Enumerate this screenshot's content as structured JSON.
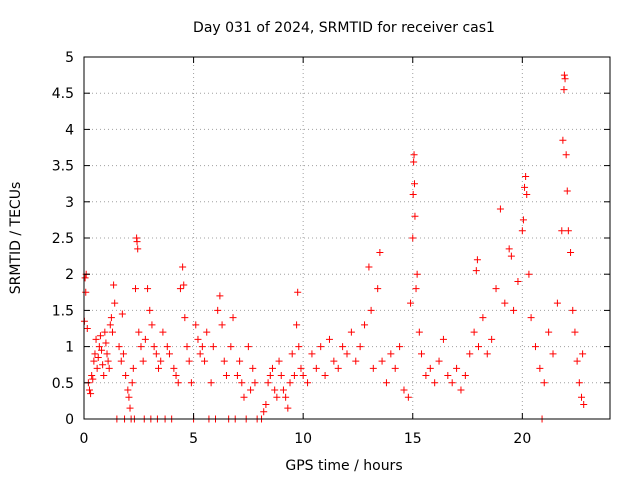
{
  "chart_data": {
    "type": "scatter",
    "title": "Day 031 of 2024, SRMTID for receiver cas1",
    "xlabel": "GPS time / hours",
    "ylabel": "SRMTID / TECUs",
    "xlim": [
      0,
      24
    ],
    "ylim": [
      0,
      5
    ],
    "xticks": [
      0,
      5,
      10,
      15,
      20
    ],
    "xtick_labels": [
      "0",
      "5",
      "10",
      "15",
      "20"
    ],
    "yticks": [
      0,
      0.5,
      1,
      1.5,
      2,
      2.5,
      3,
      3.5,
      4,
      4.5,
      5
    ],
    "ytick_labels": [
      "0",
      "0.5",
      "1",
      "1.5",
      "2",
      "2.5",
      "3",
      "3.5",
      "4",
      "4.5",
      "5"
    ],
    "grid": true,
    "marker": "+",
    "color": "#ff0000",
    "series": [
      {
        "name": "SRMTID",
        "points": [
          [
            0.02,
            1.35
          ],
          [
            0.05,
            1.95
          ],
          [
            0.08,
            1.75
          ],
          [
            0.1,
            2.0
          ],
          [
            0.15,
            1.25
          ],
          [
            0.2,
            0.5
          ],
          [
            0.25,
            0.4
          ],
          [
            0.3,
            0.35
          ],
          [
            0.35,
            0.6
          ],
          [
            0.4,
            0.55
          ],
          [
            0.45,
            0.8
          ],
          [
            0.5,
            0.9
          ],
          [
            0.55,
            1.1
          ],
          [
            0.6,
            0.7
          ],
          [
            0.65,
            0.85
          ],
          [
            0.7,
            1.0
          ],
          [
            0.75,
            1.15
          ],
          [
            0.8,
            0.95
          ],
          [
            0.85,
            0.75
          ],
          [
            0.9,
            0.6
          ],
          [
            0.95,
            1.2
          ],
          [
            1.0,
            1.05
          ],
          [
            1.05,
            0.9
          ],
          [
            1.1,
            0.8
          ],
          [
            1.15,
            0.7
          ],
          [
            1.2,
            1.3
          ],
          [
            1.25,
            1.4
          ],
          [
            1.3,
            1.2
          ],
          [
            1.35,
            1.85
          ],
          [
            1.4,
            1.6
          ],
          [
            1.5,
            0.0
          ],
          [
            1.6,
            1.0
          ],
          [
            1.7,
            0.8
          ],
          [
            1.75,
            1.45
          ],
          [
            1.8,
            0.9
          ],
          [
            1.85,
            0.0
          ],
          [
            1.9,
            0.6
          ],
          [
            2.0,
            0.4
          ],
          [
            2.05,
            0.3
          ],
          [
            2.1,
            0.15
          ],
          [
            2.15,
            0.0
          ],
          [
            2.2,
            0.5
          ],
          [
            2.25,
            0.7
          ],
          [
            2.3,
            0.0
          ],
          [
            2.35,
            1.8
          ],
          [
            2.4,
            2.5
          ],
          [
            2.42,
            2.45
          ],
          [
            2.45,
            2.35
          ],
          [
            2.5,
            1.2
          ],
          [
            2.6,
            1.0
          ],
          [
            2.7,
            0.8
          ],
          [
            2.75,
            0.0
          ],
          [
            2.8,
            1.1
          ],
          [
            2.9,
            1.8
          ],
          [
            3.0,
            1.5
          ],
          [
            3.05,
            0.0
          ],
          [
            3.1,
            1.3
          ],
          [
            3.2,
            1.0
          ],
          [
            3.3,
            0.9
          ],
          [
            3.35,
            0.0
          ],
          [
            3.4,
            0.7
          ],
          [
            3.5,
            0.8
          ],
          [
            3.6,
            1.2
          ],
          [
            3.7,
            0.0
          ],
          [
            3.8,
            1.0
          ],
          [
            3.9,
            0.9
          ],
          [
            4.0,
            0.0
          ],
          [
            4.1,
            0.7
          ],
          [
            4.2,
            0.6
          ],
          [
            4.3,
            0.5
          ],
          [
            4.4,
            1.8
          ],
          [
            4.5,
            2.1
          ],
          [
            4.55,
            1.85
          ],
          [
            4.6,
            1.4
          ],
          [
            4.7,
            1.0
          ],
          [
            4.8,
            0.8
          ],
          [
            4.9,
            0.5
          ],
          [
            5.0,
            0.0
          ],
          [
            5.1,
            1.3
          ],
          [
            5.2,
            1.1
          ],
          [
            5.3,
            0.9
          ],
          [
            5.4,
            1.0
          ],
          [
            5.5,
            0.8
          ],
          [
            5.6,
            1.2
          ],
          [
            5.7,
            0.0
          ],
          [
            5.8,
            0.5
          ],
          [
            5.9,
            1.0
          ],
          [
            6.0,
            0.0
          ],
          [
            6.1,
            1.5
          ],
          [
            6.2,
            1.7
          ],
          [
            6.3,
            1.3
          ],
          [
            6.4,
            0.8
          ],
          [
            6.5,
            0.6
          ],
          [
            6.6,
            0.0
          ],
          [
            6.7,
            1.0
          ],
          [
            6.8,
            1.4
          ],
          [
            6.9,
            0.0
          ],
          [
            7.0,
            0.6
          ],
          [
            7.1,
            0.8
          ],
          [
            7.2,
            0.5
          ],
          [
            7.3,
            0.3
          ],
          [
            7.4,
            0.0
          ],
          [
            7.5,
            1.0
          ],
          [
            7.6,
            0.4
          ],
          [
            7.7,
            0.7
          ],
          [
            7.8,
            0.5
          ],
          [
            7.9,
            0.0
          ],
          [
            8.1,
            0.0
          ],
          [
            8.2,
            0.1
          ],
          [
            8.3,
            0.2
          ],
          [
            8.4,
            0.5
          ],
          [
            8.5,
            0.6
          ],
          [
            8.6,
            0.7
          ],
          [
            8.7,
            0.4
          ],
          [
            8.8,
            0.3
          ],
          [
            8.9,
            0.8
          ],
          [
            9.0,
            0.6
          ],
          [
            9.1,
            0.4
          ],
          [
            9.2,
            0.3
          ],
          [
            9.3,
            0.15
          ],
          [
            9.4,
            0.5
          ],
          [
            9.5,
            0.9
          ],
          [
            9.6,
            0.6
          ],
          [
            9.7,
            1.3
          ],
          [
            9.75,
            1.75
          ],
          [
            9.8,
            1.0
          ],
          [
            9.9,
            0.7
          ],
          [
            10.0,
            0.6
          ],
          [
            10.2,
            0.5
          ],
          [
            10.4,
            0.9
          ],
          [
            10.6,
            0.7
          ],
          [
            10.8,
            1.0
          ],
          [
            11.0,
            0.6
          ],
          [
            11.2,
            1.1
          ],
          [
            11.4,
            0.8
          ],
          [
            11.6,
            0.7
          ],
          [
            11.8,
            1.0
          ],
          [
            12.0,
            0.9
          ],
          [
            12.2,
            1.2
          ],
          [
            12.4,
            0.8
          ],
          [
            12.6,
            1.0
          ],
          [
            12.8,
            1.3
          ],
          [
            13.0,
            2.1
          ],
          [
            13.1,
            1.5
          ],
          [
            13.2,
            0.7
          ],
          [
            13.4,
            1.8
          ],
          [
            13.5,
            2.3
          ],
          [
            13.6,
            0.8
          ],
          [
            13.8,
            0.5
          ],
          [
            14.0,
            0.9
          ],
          [
            14.2,
            0.7
          ],
          [
            14.4,
            1.0
          ],
          [
            14.6,
            0.4
          ],
          [
            14.8,
            0.3
          ],
          [
            14.9,
            1.6
          ],
          [
            15.0,
            2.5
          ],
          [
            15.02,
            3.1
          ],
          [
            15.04,
            3.55
          ],
          [
            15.06,
            3.65
          ],
          [
            15.08,
            3.25
          ],
          [
            15.1,
            2.8
          ],
          [
            15.15,
            1.8
          ],
          [
            15.2,
            2.0
          ],
          [
            15.3,
            1.2
          ],
          [
            15.4,
            0.9
          ],
          [
            15.6,
            0.6
          ],
          [
            15.8,
            0.7
          ],
          [
            16.0,
            0.5
          ],
          [
            16.2,
            0.8
          ],
          [
            16.4,
            1.1
          ],
          [
            16.6,
            0.6
          ],
          [
            16.8,
            0.5
          ],
          [
            17.0,
            0.7
          ],
          [
            17.2,
            0.4
          ],
          [
            17.4,
            0.6
          ],
          [
            17.6,
            0.9
          ],
          [
            17.8,
            1.2
          ],
          [
            17.9,
            2.05
          ],
          [
            17.95,
            2.2
          ],
          [
            18.0,
            1.0
          ],
          [
            18.2,
            1.4
          ],
          [
            18.4,
            0.9
          ],
          [
            18.6,
            1.1
          ],
          [
            18.8,
            1.8
          ],
          [
            19.0,
            2.9
          ],
          [
            19.2,
            1.6
          ],
          [
            19.4,
            2.35
          ],
          [
            19.5,
            2.25
          ],
          [
            19.6,
            1.5
          ],
          [
            19.8,
            1.9
          ],
          [
            20.0,
            2.6
          ],
          [
            20.05,
            2.75
          ],
          [
            20.1,
            3.2
          ],
          [
            20.15,
            3.35
          ],
          [
            20.2,
            3.1
          ],
          [
            20.3,
            2.0
          ],
          [
            20.4,
            1.4
          ],
          [
            20.6,
            1.0
          ],
          [
            20.8,
            0.7
          ],
          [
            20.9,
            0.0
          ],
          [
            21.0,
            0.5
          ],
          [
            21.2,
            1.2
          ],
          [
            21.4,
            0.9
          ],
          [
            21.6,
            1.6
          ],
          [
            21.8,
            2.6
          ],
          [
            21.85,
            3.85
          ],
          [
            21.9,
            4.55
          ],
          [
            21.92,
            4.75
          ],
          [
            21.95,
            4.7
          ],
          [
            22.0,
            3.65
          ],
          [
            22.05,
            3.15
          ],
          [
            22.1,
            2.6
          ],
          [
            22.2,
            2.3
          ],
          [
            22.3,
            1.5
          ],
          [
            22.4,
            1.2
          ],
          [
            22.5,
            0.8
          ],
          [
            22.6,
            0.5
          ],
          [
            22.7,
            0.3
          ],
          [
            22.8,
            0.2
          ],
          [
            22.75,
            0.9
          ]
        ]
      }
    ]
  }
}
